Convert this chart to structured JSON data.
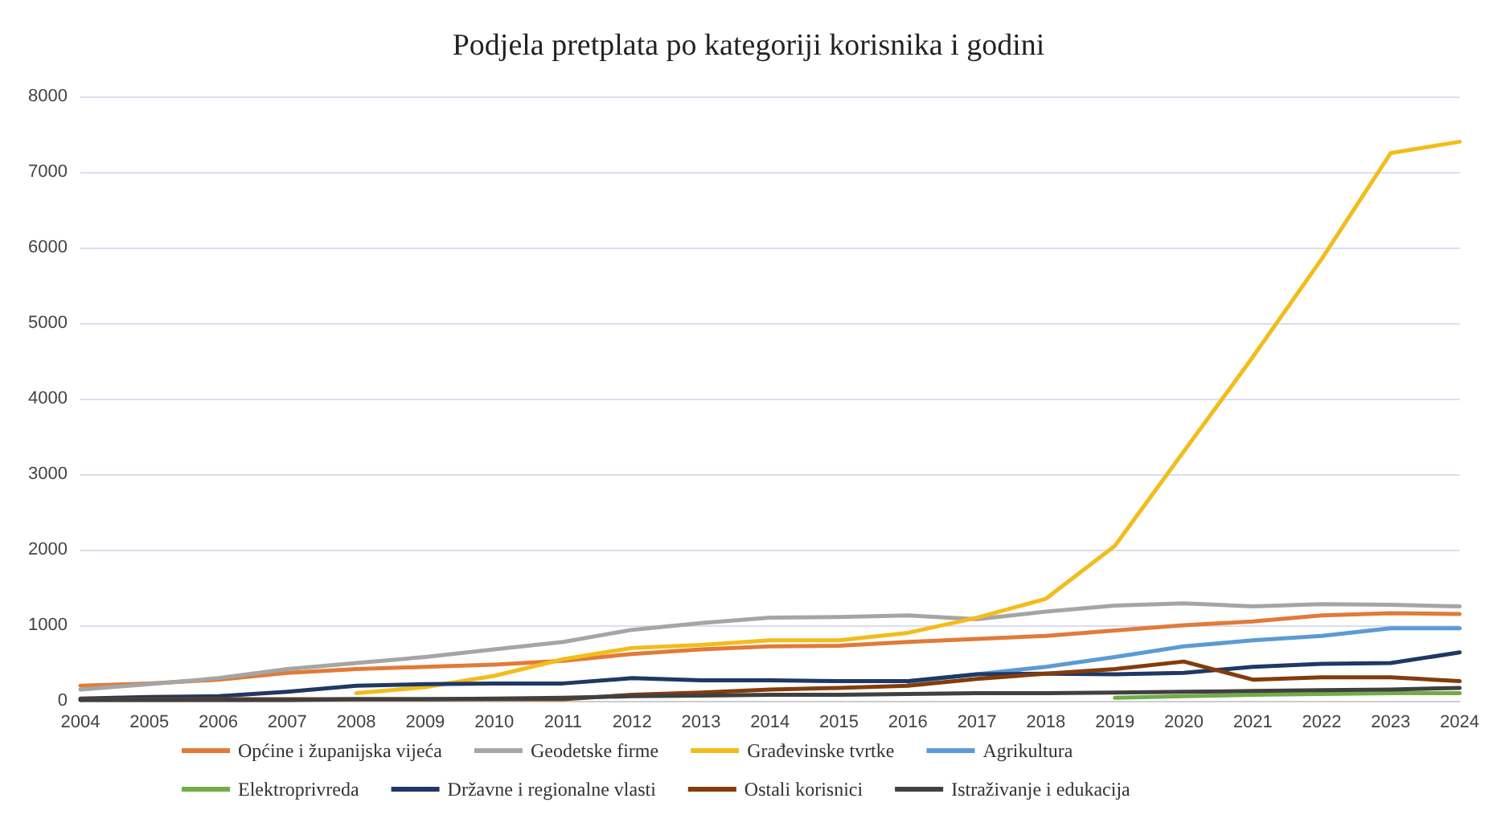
{
  "chart_data": {
    "type": "line",
    "title": "Podjela pretplata po kategoriji korisnika i godini",
    "categories": [
      "2004",
      "2005",
      "2006",
      "2007",
      "2008",
      "2009",
      "2010",
      "2011",
      "2012",
      "2013",
      "2014",
      "2015",
      "2016",
      "2017",
      "2018",
      "2019",
      "2020",
      "2021",
      "2022",
      "2023",
      "2024"
    ],
    "series": [
      {
        "name": "Općine i županijska vijeća",
        "color": "#e07b39",
        "values": [
          200,
          230,
          280,
          370,
          420,
          450,
          480,
          530,
          620,
          680,
          720,
          730,
          780,
          820,
          860,
          930,
          1000,
          1050,
          1130,
          1160,
          1150
        ]
      },
      {
        "name": "Geodetske firme",
        "color": "#a5a5a5",
        "values": [
          150,
          220,
          300,
          420,
          500,
          580,
          680,
          780,
          940,
          1030,
          1100,
          1110,
          1130,
          1080,
          1180,
          1260,
          1290,
          1250,
          1280,
          1270,
          1250
        ]
      },
      {
        "name": "Građevinske tvrtke",
        "color": "#f2bc1b",
        "values": [
          null,
          null,
          null,
          null,
          100,
          180,
          330,
          550,
          700,
          740,
          800,
          800,
          900,
          1100,
          1350,
          2050,
          3300,
          4550,
          5850,
          7250,
          7400
        ]
      },
      {
        "name": "Agrikultura",
        "color": "#5b9bd5",
        "values": [
          null,
          null,
          null,
          null,
          null,
          null,
          null,
          null,
          null,
          null,
          null,
          null,
          250,
          350,
          450,
          580,
          720,
          800,
          860,
          960,
          960
        ]
      },
      {
        "name": "Elektroprivreda",
        "color": "#70ad47",
        "values": [
          null,
          null,
          null,
          null,
          null,
          null,
          null,
          null,
          null,
          null,
          null,
          null,
          null,
          null,
          null,
          40,
          60,
          80,
          90,
          100,
          100
        ]
      },
      {
        "name": "Državne i regionalne vlasti",
        "color": "#1f3864",
        "values": [
          30,
          50,
          60,
          120,
          200,
          220,
          230,
          230,
          300,
          270,
          270,
          260,
          260,
          350,
          360,
          350,
          370,
          450,
          490,
          500,
          640
        ]
      },
      {
        "name": "Ostali korisnici",
        "color": "#843c0c",
        "values": [
          20,
          20,
          20,
          20,
          20,
          20,
          20,
          20,
          80,
          110,
          150,
          170,
          200,
          290,
          360,
          420,
          520,
          280,
          310,
          310,
          260
        ]
      },
      {
        "name": "Istraživanje i edukacija",
        "color": "#404040",
        "values": [
          10,
          10,
          10,
          10,
          20,
          20,
          30,
          40,
          60,
          70,
          80,
          80,
          90,
          100,
          100,
          110,
          120,
          130,
          140,
          150,
          170
        ]
      }
    ],
    "ylim": [
      0,
      8000
    ],
    "yticks": [
      0,
      1000,
      2000,
      3000,
      4000,
      5000,
      6000,
      7000,
      8000
    ],
    "grid": "y",
    "legend": "bottom",
    "marker": "none",
    "line_style": "solid"
  }
}
